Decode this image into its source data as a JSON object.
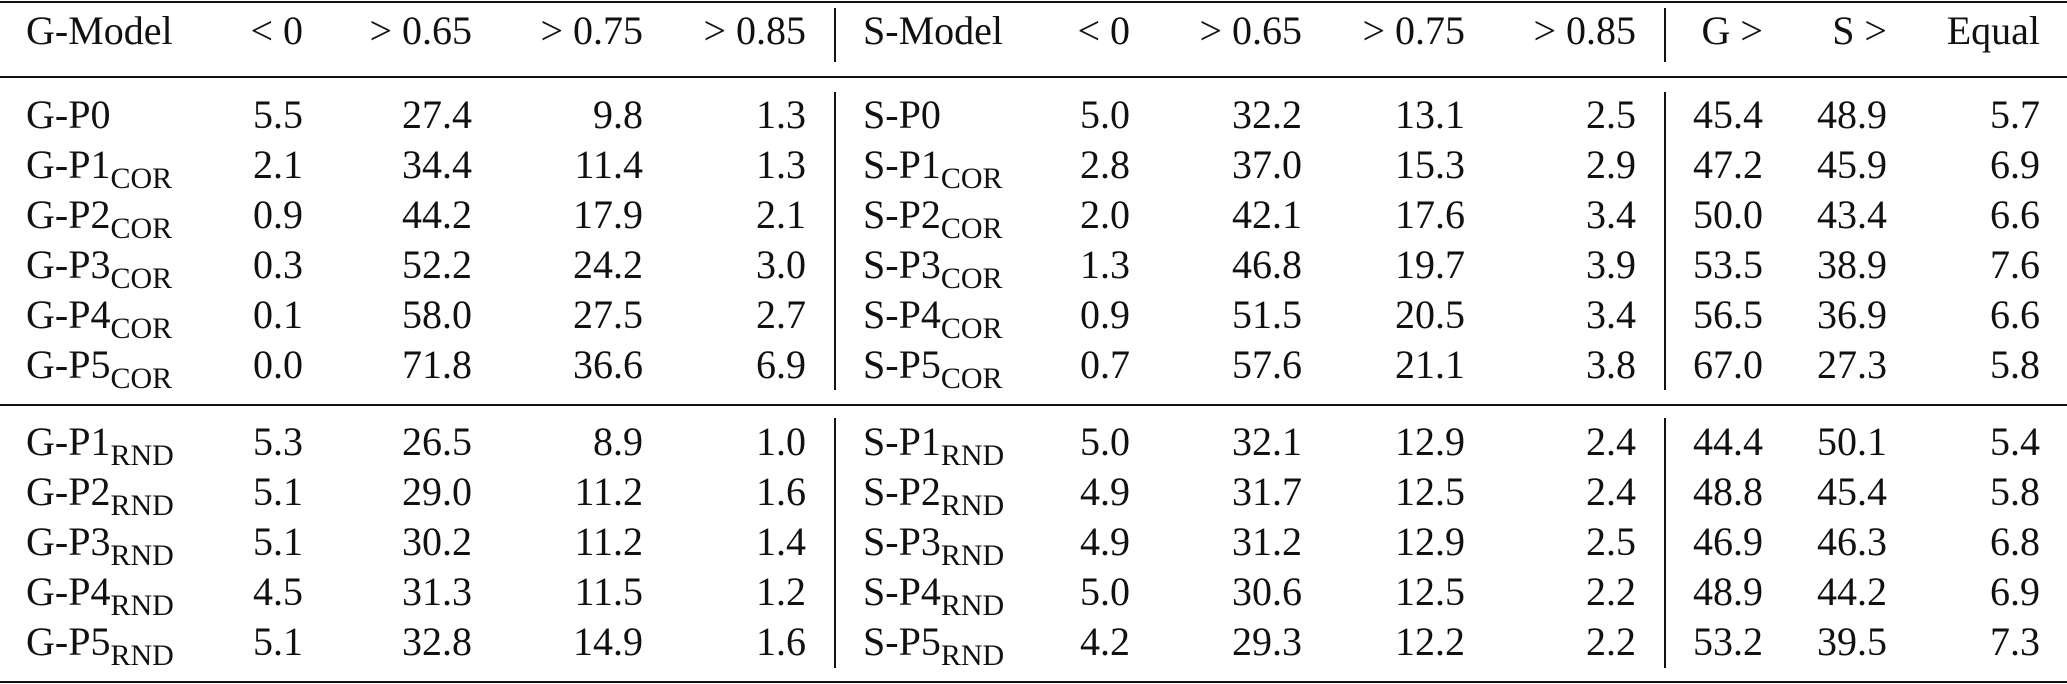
{
  "header": [
    "G-Model",
    "< 0",
    "> 0.65",
    "> 0.75",
    "> 0.85",
    "S-Model",
    "< 0",
    "> 0.65",
    "> 0.75",
    "> 0.85",
    "G >",
    "S >",
    "Equal"
  ],
  "groups": [
    [
      {
        "g": "G-P0",
        "gs": "",
        "gv": [
          "5.5",
          "27.4",
          "9.8",
          "1.3"
        ],
        "s": "S-P0",
        "ss": "",
        "sv": [
          "5.0",
          "32.2",
          "13.1",
          "2.5"
        ],
        "c": [
          "45.4",
          "48.9",
          "5.7"
        ]
      },
      {
        "g": "G-P1",
        "gs": "COR",
        "gv": [
          "2.1",
          "34.4",
          "11.4",
          "1.3"
        ],
        "s": "S-P1",
        "ss": "COR",
        "sv": [
          "2.8",
          "37.0",
          "15.3",
          "2.9"
        ],
        "c": [
          "47.2",
          "45.9",
          "6.9"
        ]
      },
      {
        "g": "G-P2",
        "gs": "COR",
        "gv": [
          "0.9",
          "44.2",
          "17.9",
          "2.1"
        ],
        "s": "S-P2",
        "ss": "COR",
        "sv": [
          "2.0",
          "42.1",
          "17.6",
          "3.4"
        ],
        "c": [
          "50.0",
          "43.4",
          "6.6"
        ]
      },
      {
        "g": "G-P3",
        "gs": "COR",
        "gv": [
          "0.3",
          "52.2",
          "24.2",
          "3.0"
        ],
        "s": "S-P3",
        "ss": "COR",
        "sv": [
          "1.3",
          "46.8",
          "19.7",
          "3.9"
        ],
        "c": [
          "53.5",
          "38.9",
          "7.6"
        ]
      },
      {
        "g": "G-P4",
        "gs": "COR",
        "gv": [
          "0.1",
          "58.0",
          "27.5",
          "2.7"
        ],
        "s": "S-P4",
        "ss": "COR",
        "sv": [
          "0.9",
          "51.5",
          "20.5",
          "3.4"
        ],
        "c": [
          "56.5",
          "36.9",
          "6.6"
        ]
      },
      {
        "g": "G-P5",
        "gs": "COR",
        "gv": [
          "0.0",
          "71.8",
          "36.6",
          "6.9"
        ],
        "s": "S-P5",
        "ss": "COR",
        "sv": [
          "0.7",
          "57.6",
          "21.1",
          "3.8"
        ],
        "c": [
          "67.0",
          "27.3",
          "5.8"
        ]
      }
    ],
    [
      {
        "g": "G-P1",
        "gs": "RND",
        "gv": [
          "5.3",
          "26.5",
          "8.9",
          "1.0"
        ],
        "s": "S-P1",
        "ss": "RND",
        "sv": [
          "5.0",
          "32.1",
          "12.9",
          "2.4"
        ],
        "c": [
          "44.4",
          "50.1",
          "5.4"
        ]
      },
      {
        "g": "G-P2",
        "gs": "RND",
        "gv": [
          "5.1",
          "29.0",
          "11.2",
          "1.6"
        ],
        "s": "S-P2",
        "ss": "RND",
        "sv": [
          "4.9",
          "31.7",
          "12.5",
          "2.4"
        ],
        "c": [
          "48.8",
          "45.4",
          "5.8"
        ]
      },
      {
        "g": "G-P3",
        "gs": "RND",
        "gv": [
          "5.1",
          "30.2",
          "11.2",
          "1.4"
        ],
        "s": "S-P3",
        "ss": "RND",
        "sv": [
          "4.9",
          "31.2",
          "12.9",
          "2.5"
        ],
        "c": [
          "46.9",
          "46.3",
          "6.8"
        ]
      },
      {
        "g": "G-P4",
        "gs": "RND",
        "gv": [
          "4.5",
          "31.3",
          "11.5",
          "1.2"
        ],
        "s": "S-P4",
        "ss": "RND",
        "sv": [
          "5.0",
          "30.6",
          "12.5",
          "2.2"
        ],
        "c": [
          "48.9",
          "44.2",
          "6.9"
        ]
      },
      {
        "g": "G-P5",
        "gs": "RND",
        "gv": [
          "5.1",
          "32.8",
          "14.9",
          "1.6"
        ],
        "s": "S-P5",
        "ss": "RND",
        "sv": [
          "4.2",
          "29.3",
          "12.2",
          "2.2"
        ],
        "c": [
          "53.2",
          "39.5",
          "7.3"
        ]
      }
    ]
  ]
}
